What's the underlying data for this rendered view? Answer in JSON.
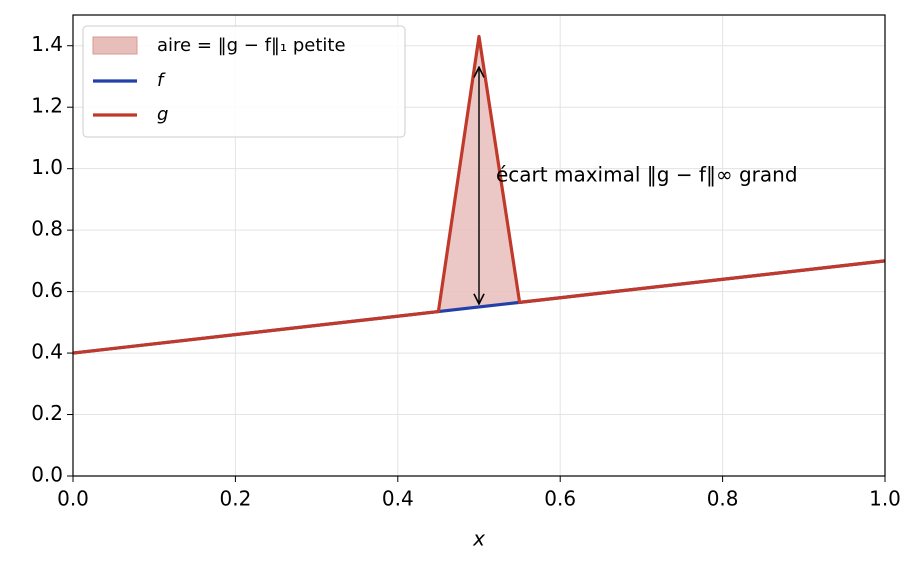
{
  "chart_data": {
    "type": "line",
    "x_label": "x",
    "x": [
      0,
      0.45,
      0.5,
      0.55,
      1
    ],
    "series": [
      {
        "name": "f",
        "color": "#2340a8",
        "values": [
          0.4,
          0.535,
          0.55,
          0.565,
          0.7
        ]
      },
      {
        "name": "g",
        "color": "#c0392b",
        "values": [
          0.4,
          0.535,
          1.43,
          0.565,
          0.7
        ]
      }
    ],
    "fill_between": {
      "name": "aire = ‖g − f‖₁ petite",
      "color": "#e8bebb",
      "edge_color": "#d99a94"
    },
    "annotation": {
      "text": "écart maximal ‖g − f‖∞ grand",
      "x": 0.5,
      "y": [
        0.56,
        1.33
      ]
    },
    "xlim": [
      0,
      1
    ],
    "ylim": [
      0,
      1.5
    ],
    "xticks": [
      {
        "value": 0,
        "label": "0.0"
      },
      0.2,
      0.4,
      0.6,
      0.8,
      {
        "value": 1,
        "label": "1.0"
      }
    ],
    "yticks": [
      {
        "value": 0,
        "label": "0.0"
      },
      0.2,
      0.4,
      0.6,
      0.8,
      {
        "value": 1,
        "label": "1.0"
      },
      1.2,
      1.4
    ],
    "grid": true,
    "legend": "upper left"
  }
}
